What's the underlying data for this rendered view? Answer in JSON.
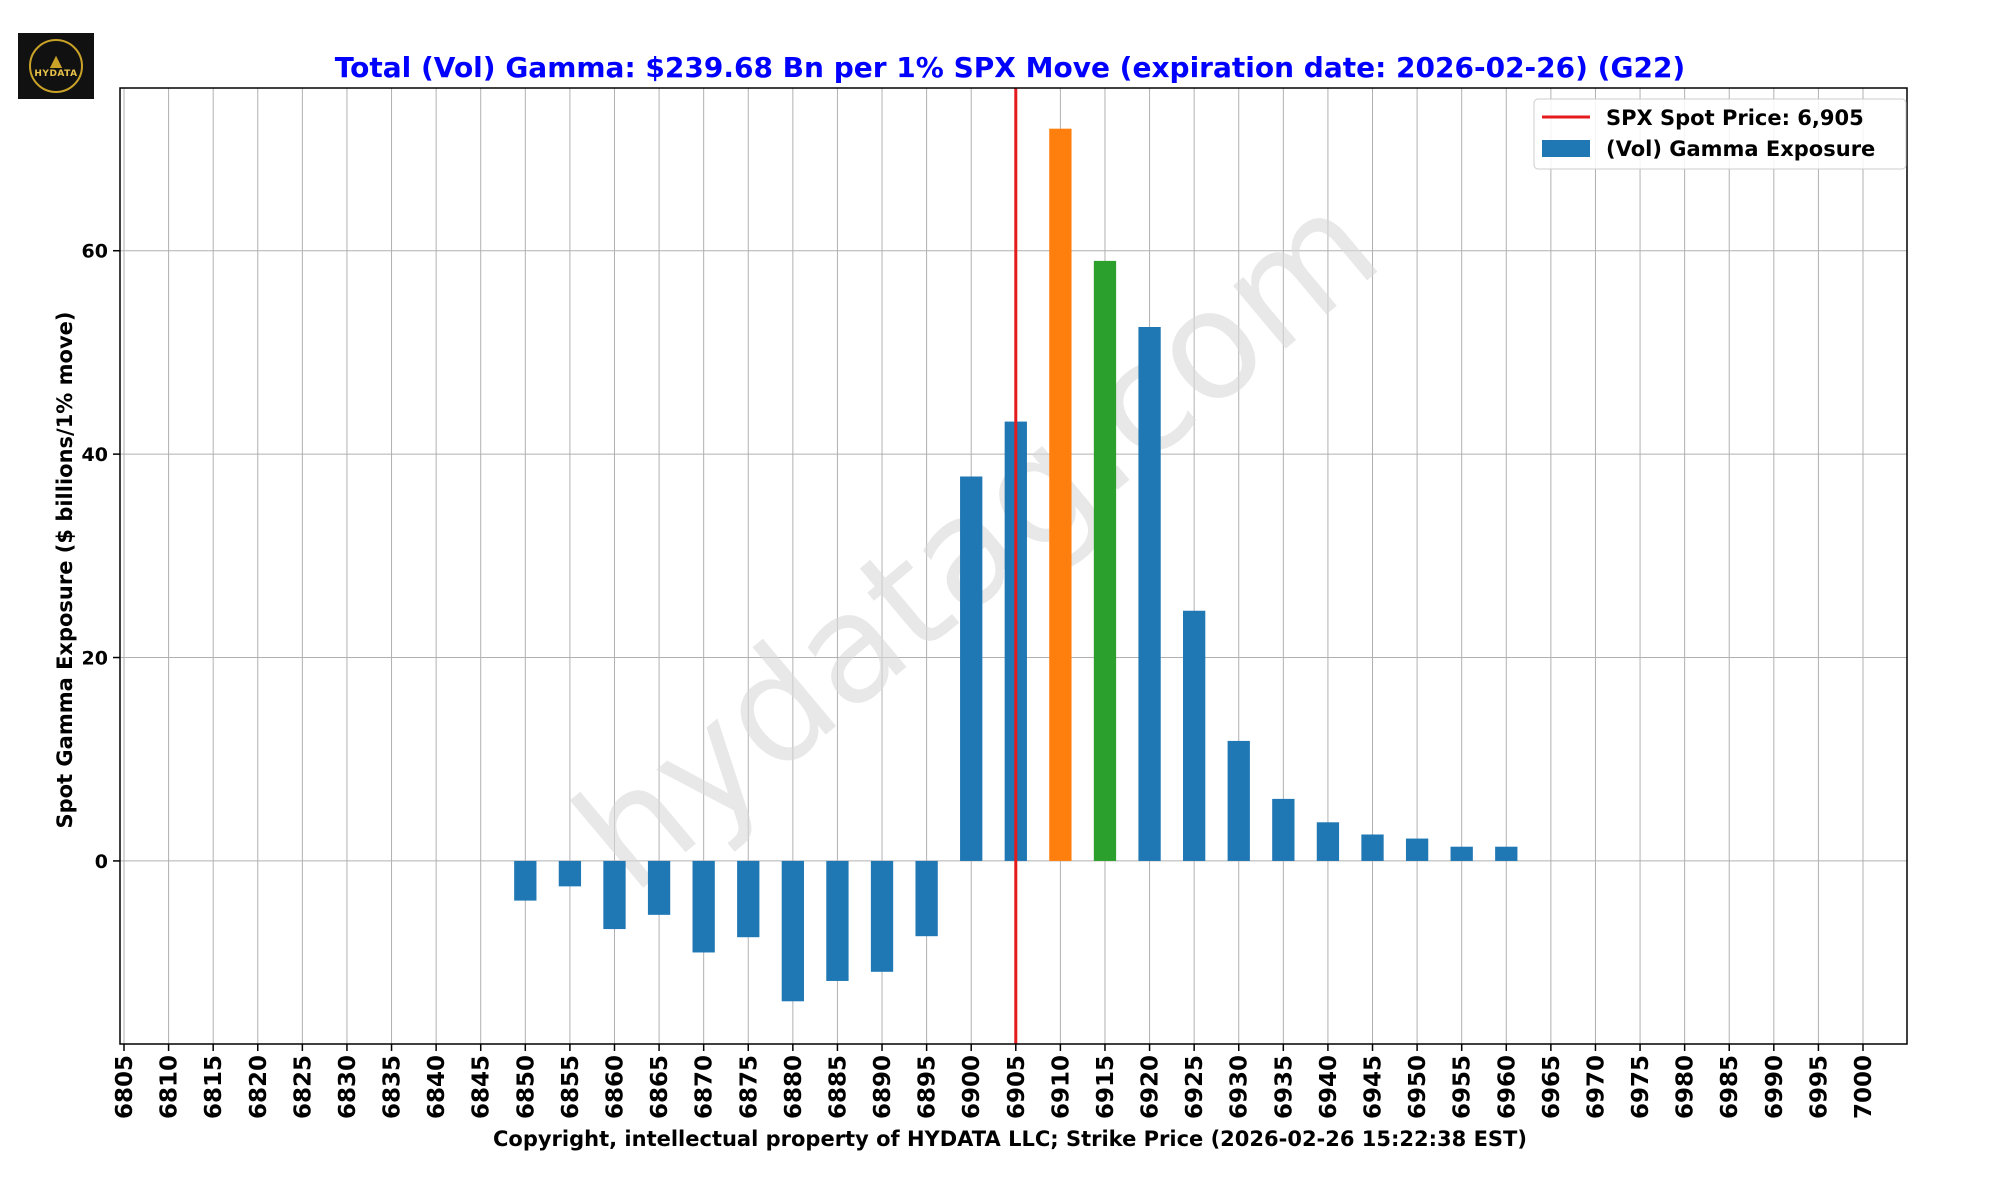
{
  "logo": {
    "text": "HYDATA",
    "icon": "wolf-logo-icon"
  },
  "colors": {
    "title": "#0000ff",
    "bar_default": "#1f77b4",
    "bar_max": "#ff7f0e",
    "bar_second": "#2ca02c",
    "spot_line": "#e41a1c",
    "grid": "#b0b0b0",
    "watermark": "#d9d9d9"
  },
  "watermark": "hydatag.com",
  "chart_data": {
    "type": "bar",
    "title": "Total (Vol) Gamma: $239.68 Bn per 1% SPX Move (expiration date: 2026-02-26) (G22)",
    "xlabel": "Copyright, intellectual property of HYDATA LLC; Strike Price (2026-02-26 15:22:38 EST)",
    "ylabel": "Spot Gamma Exposure ($ billions/1% move)",
    "ylim": [
      -18,
      76
    ],
    "yticks": [
      0,
      20,
      40,
      60
    ],
    "grid": true,
    "legend_position": "top-right",
    "legend": [
      {
        "type": "line",
        "label": "SPX Spot Price: 6,905"
      },
      {
        "type": "bar",
        "label": "(Vol) Gamma Exposure"
      }
    ],
    "spot_price": 6905,
    "categories": [
      "6805",
      "6810",
      "6815",
      "6820",
      "6825",
      "6830",
      "6835",
      "6840",
      "6845",
      "6850",
      "6855",
      "6860",
      "6865",
      "6870",
      "6875",
      "6880",
      "6885",
      "6890",
      "6895",
      "6900",
      "6905",
      "6910",
      "6915",
      "6920",
      "6925",
      "6930",
      "6935",
      "6940",
      "6945",
      "6950",
      "6955",
      "6960",
      "6965",
      "6970",
      "6975",
      "6980",
      "6985",
      "6990",
      "6995",
      "7000"
    ],
    "series": [
      {
        "name": "(Vol) Gamma Exposure",
        "values": [
          0,
          0,
          0,
          0,
          0,
          0,
          0,
          0,
          0,
          -3.9,
          -2.5,
          -6.7,
          -5.3,
          -9.0,
          -7.5,
          -13.8,
          -11.8,
          -10.9,
          -7.4,
          37.8,
          43.2,
          72.0,
          59.0,
          52.5,
          24.6,
          11.8,
          6.1,
          3.8,
          2.6,
          2.2,
          1.4,
          1.4,
          0,
          0,
          0,
          0,
          0,
          0,
          0,
          0
        ],
        "highlight": {
          "6910": "bar_max",
          "6915": "bar_second"
        }
      }
    ]
  }
}
